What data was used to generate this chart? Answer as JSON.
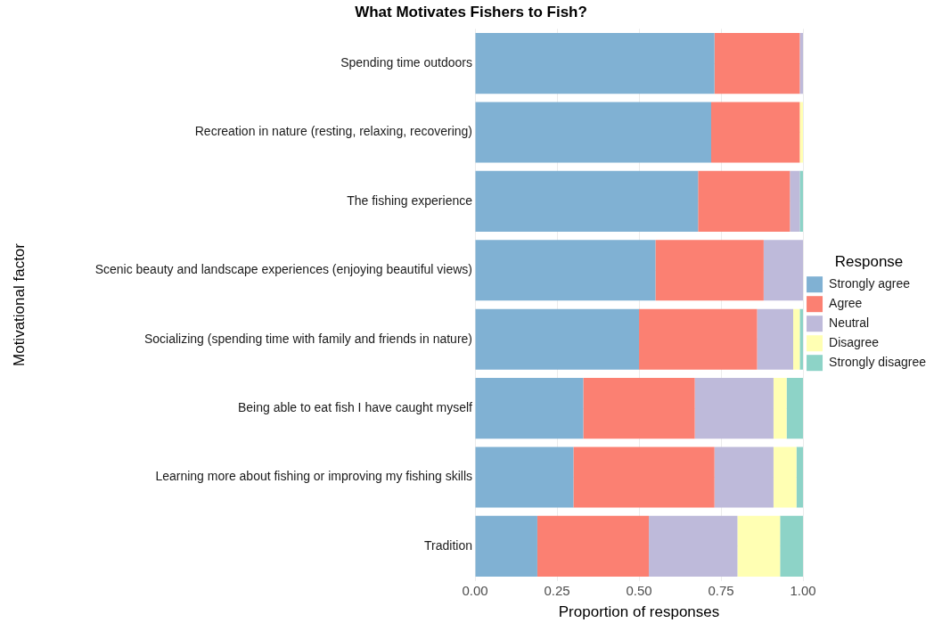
{
  "chart_data": {
    "type": "bar",
    "orientation": "horizontal",
    "stacked": true,
    "title": "What Motivates Fishers to Fish?",
    "xlabel": "Proportion of responses",
    "ylabel": "Motivational factor",
    "legend_title": "Response",
    "legend": "right",
    "grid": true,
    "categories": [
      "Spending time outdoors",
      "Recreation in nature (resting, relaxing, recovering)",
      "The fishing experience",
      "Scenic beauty and landscape experiences (enjoying beautiful views)",
      "Socializing (spending time with family and friends in nature)",
      "Being able to eat fish I have caught myself",
      "Learning more about fishing or improving my fishing skills",
      "Tradition"
    ],
    "xlim": [
      0,
      1
    ],
    "xticks": [
      {
        "value": 0,
        "label": "0.00"
      },
      {
        "value": 0.25,
        "label": "0.25"
      },
      {
        "value": 0.5,
        "label": "0.50"
      },
      {
        "value": 0.75,
        "label": "0.75"
      },
      {
        "value": 1,
        "label": "1.00"
      }
    ],
    "series": [
      {
        "name": "Strongly agree",
        "color": "#80b1d3",
        "values": [
          0.73,
          0.72,
          0.68,
          0.55,
          0.5,
          0.33,
          0.3,
          0.19
        ]
      },
      {
        "name": "Agree",
        "color": "#fb8072",
        "values": [
          0.26,
          0.27,
          0.28,
          0.33,
          0.36,
          0.34,
          0.43,
          0.34
        ]
      },
      {
        "name": "Neutral",
        "color": "#bebada",
        "values": [
          0.01,
          0,
          0.03,
          0.12,
          0.11,
          0.24,
          0.18,
          0.27
        ]
      },
      {
        "name": "Disagree",
        "color": "#ffffb3",
        "values": [
          0,
          0.01,
          0,
          0,
          0.02,
          0.04,
          0.07,
          0.13
        ]
      },
      {
        "name": "Strongly disagree",
        "color": "#8dd3c7",
        "values": [
          0,
          0,
          0.01,
          0,
          0.01,
          0.05,
          0.02,
          0.07
        ]
      }
    ]
  }
}
